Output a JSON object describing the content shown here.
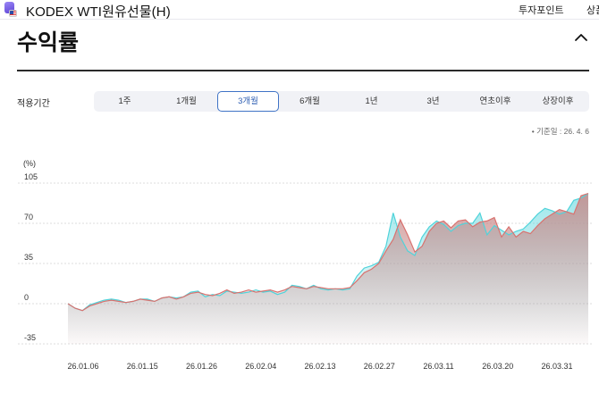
{
  "header": {
    "fund_title": "KODEX WTI원유선물(H)",
    "nav": [
      "투자포인트",
      "상품"
    ],
    "logo_icon": "fund-logo-with-us-flag-icon"
  },
  "section": {
    "title": "수익률",
    "collapse_icon": "chevron-up-icon"
  },
  "period": {
    "label": "적용기간",
    "tabs": [
      "1주",
      "1개월",
      "3개월",
      "6개월",
      "1년",
      "3년",
      "연초이후",
      "상장이후"
    ],
    "selected": "3개월"
  },
  "base_date": "• 기준일 : 26. 4. 6",
  "colors": {
    "series_red": "#d9726f",
    "series_cyan": "#4fd3da",
    "area_top": "#c88a8a",
    "active_tab": "#3f73c6"
  },
  "chart_data": {
    "type": "area",
    "unit_label": "(%)",
    "yticks": [
      "105",
      "70",
      "35",
      "0",
      "-35"
    ],
    "ylim": [
      -35,
      105
    ],
    "xticks": [
      "26.01.06",
      "26.01.15",
      "26.01.26",
      "26.02.04",
      "26.02.13",
      "26.02.27",
      "26.03.11",
      "26.03.20",
      "26.03.31"
    ],
    "grid": "horizontal-dashed",
    "series": [
      {
        "color": "#d9726f",
        "values": [
          0,
          -4,
          -6,
          -2,
          0,
          2,
          3,
          2,
          1,
          2,
          4,
          3,
          2,
          5,
          6,
          4,
          6,
          9,
          10,
          8,
          7,
          9,
          12,
          9,
          10,
          12,
          10,
          11,
          12,
          10,
          12,
          15,
          14,
          13,
          15,
          14,
          13,
          13,
          13,
          14,
          20,
          27,
          30,
          35,
          46,
          56,
          73,
          60,
          45,
          50,
          63,
          70,
          72,
          66,
          72,
          73,
          67,
          71,
          72,
          75,
          58,
          67,
          58,
          63,
          61,
          68,
          74,
          78,
          82,
          80,
          78,
          94,
          96
        ]
      },
      {
        "color": "#4fd3da",
        "values": [
          0,
          -4,
          -6,
          -1,
          1,
          3,
          4,
          3,
          1,
          2,
          4,
          4,
          2,
          5,
          6,
          5,
          6,
          10,
          11,
          6,
          8,
          7,
          11,
          10,
          9,
          10,
          12,
          10,
          11,
          8,
          10,
          16,
          15,
          13,
          16,
          13,
          12,
          13,
          12,
          13,
          24,
          31,
          33,
          36,
          50,
          79,
          58,
          46,
          42,
          58,
          67,
          72,
          69,
          63,
          68,
          70,
          70,
          79,
          60,
          68,
          64,
          60,
          63,
          65,
          71,
          78,
          83,
          81,
          78,
          80,
          90,
          92,
          96
        ]
      }
    ]
  }
}
